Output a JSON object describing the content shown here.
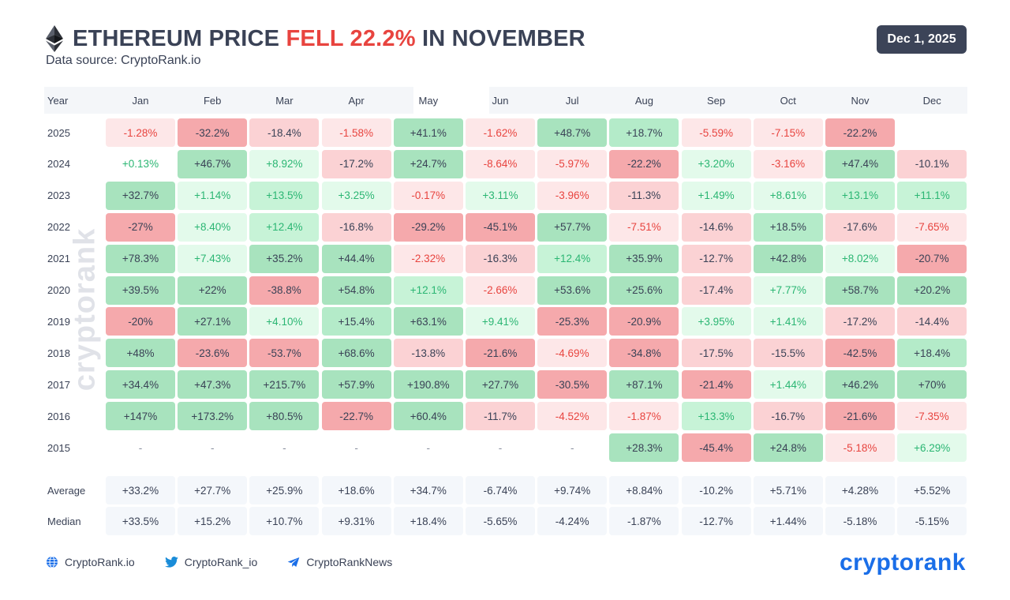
{
  "header": {
    "title_prefix": "ETHEREUM PRICE ",
    "title_highlight": "FELL 22.2%",
    "title_suffix": " IN NOVEMBER",
    "subtitle": "Data source: CryptoRank.io",
    "date_badge": "Dec 1, 2025",
    "logo_icon": "ethereum-icon"
  },
  "watermark": "cryptorank",
  "colors": {
    "positive_text": "#2bb673",
    "negative_text": "#e8443f",
    "title_highlight": "#e8443f",
    "brand_blue": "#1a6ee8"
  },
  "chart_data": {
    "type": "table",
    "title": "ETHEREUM PRICE FELL 22.2% IN NOVEMBER",
    "year_header": "Year",
    "months": [
      "Jan",
      "Feb",
      "Mar",
      "Apr",
      "May",
      "Jun",
      "Jul",
      "Aug",
      "Sep",
      "Oct",
      "Nov",
      "Dec"
    ],
    "rows": [
      {
        "year": "2025",
        "values": [
          "-1.28%",
          "-32.2%",
          "-18.4%",
          "-1.58%",
          "+41.1%",
          "-1.62%",
          "+48.7%",
          "+18.7%",
          "-5.59%",
          "-7.15%",
          "-22.2%",
          ""
        ]
      },
      {
        "year": "2024",
        "values": [
          "+0.13%",
          "+46.7%",
          "+8.92%",
          "-17.2%",
          "+24.7%",
          "-8.64%",
          "-5.97%",
          "-22.2%",
          "+3.20%",
          "-3.16%",
          "+47.4%",
          "-10.1%"
        ]
      },
      {
        "year": "2023",
        "values": [
          "+32.7%",
          "+1.14%",
          "+13.5%",
          "+3.25%",
          "-0.17%",
          "+3.11%",
          "-3.96%",
          "-11.3%",
          "+1.49%",
          "+8.61%",
          "+13.1%",
          "+11.1%"
        ]
      },
      {
        "year": "2022",
        "values": [
          "-27%",
          "+8.40%",
          "+12.4%",
          "-16.8%",
          "-29.2%",
          "-45.1%",
          "+57.7%",
          "-7.51%",
          "-14.6%",
          "+18.5%",
          "-17.6%",
          "-7.65%"
        ]
      },
      {
        "year": "2021",
        "values": [
          "+78.3%",
          "+7.43%",
          "+35.2%",
          "+44.4%",
          "-2.32%",
          "-16.3%",
          "+12.4%",
          "+35.9%",
          "-12.7%",
          "+42.8%",
          "+8.02%",
          "-20.7%"
        ]
      },
      {
        "year": "2020",
        "values": [
          "+39.5%",
          "+22%",
          "-38.8%",
          "+54.8%",
          "+12.1%",
          "-2.66%",
          "+53.6%",
          "+25.6%",
          "-17.4%",
          "+7.77%",
          "+58.7%",
          "+20.2%"
        ]
      },
      {
        "year": "2019",
        "values": [
          "-20%",
          "+27.1%",
          "+4.10%",
          "+15.4%",
          "+63.1%",
          "+9.41%",
          "-25.3%",
          "-20.9%",
          "+3.95%",
          "+1.41%",
          "-17.2%",
          "-14.4%"
        ]
      },
      {
        "year": "2018",
        "values": [
          "+48%",
          "-23.6%",
          "-53.7%",
          "+68.6%",
          "-13.8%",
          "-21.6%",
          "-4.69%",
          "-34.8%",
          "-17.5%",
          "-15.5%",
          "-42.5%",
          "+18.4%"
        ]
      },
      {
        "year": "2017",
        "values": [
          "+34.4%",
          "+47.3%",
          "+215.7%",
          "+57.9%",
          "+190.8%",
          "+27.7%",
          "-30.5%",
          "+87.1%",
          "-21.4%",
          "+1.44%",
          "+46.2%",
          "+70%"
        ]
      },
      {
        "year": "2016",
        "values": [
          "+147%",
          "+173.2%",
          "+80.5%",
          "-22.7%",
          "+60.4%",
          "-11.7%",
          "-4.52%",
          "-1.87%",
          "+13.3%",
          "-16.7%",
          "-21.6%",
          "-7.35%"
        ]
      },
      {
        "year": "2015",
        "values": [
          "-",
          "-",
          "-",
          "-",
          "-",
          "-",
          "-",
          "+28.3%",
          "-45.4%",
          "+24.8%",
          "-5.18%",
          "+6.29%"
        ]
      }
    ],
    "summary": [
      {
        "label": "Average",
        "values": [
          "+33.2%",
          "+27.7%",
          "+25.9%",
          "+18.6%",
          "+34.7%",
          "-6.74%",
          "+9.74%",
          "+8.84%",
          "-10.2%",
          "+5.71%",
          "+4.28%",
          "+5.52%"
        ]
      },
      {
        "label": "Median",
        "values": [
          "+33.5%",
          "+15.2%",
          "+10.7%",
          "+9.31%",
          "+18.4%",
          "-5.65%",
          "-4.24%",
          "-1.87%",
          "-12.7%",
          "+1.44%",
          "-5.18%",
          "-5.15%"
        ]
      }
    ]
  },
  "footer": {
    "website": "CryptoRank.io",
    "twitter": "CryptoRank_io",
    "telegram": "CryptoRankNews",
    "brand": "cryptorank"
  }
}
